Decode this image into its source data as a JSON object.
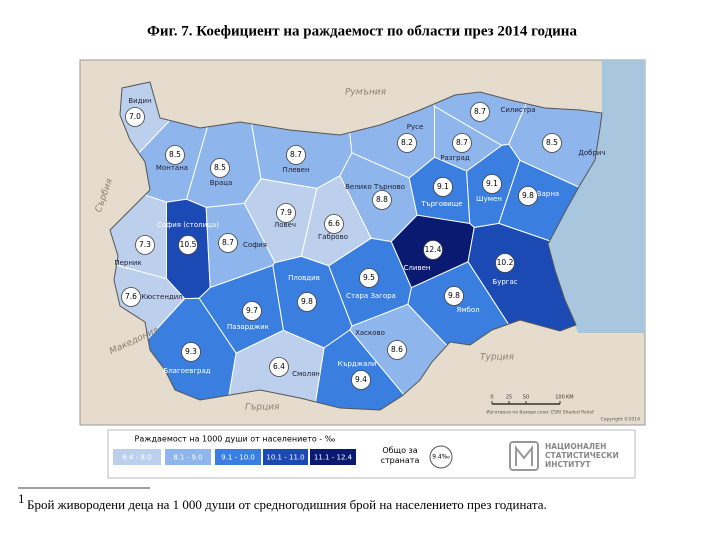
{
  "title": "Фиг. 7. Коефициент на раждаемост по области през 2014 година",
  "map": {
    "regions": [
      {
        "name": "Видин",
        "value": 7.0,
        "value_label": "7.0"
      },
      {
        "name": "Монтана",
        "value": 8.5,
        "value_label": "8.5"
      },
      {
        "name": "Враца",
        "value": 8.5,
        "value_label": "8.5"
      },
      {
        "name": "Плевен",
        "value": 8.7,
        "value_label": "8.7"
      },
      {
        "name": "Ловеч",
        "value": 7.9,
        "value_label": "7.9"
      },
      {
        "name": "Велико Търново",
        "value": 8.8,
        "value_label": "8.8"
      },
      {
        "name": "Русе",
        "value": 8.2,
        "value_label": "8.2"
      },
      {
        "name": "Разград",
        "value": 8.7,
        "value_label": "8.7"
      },
      {
        "name": "Силистра",
        "value": 8.7,
        "value_label": "8.7"
      },
      {
        "name": "Добрич",
        "value": 8.5,
        "value_label": "8.5"
      },
      {
        "name": "Търговище",
        "value": 9.1,
        "value_label": "9.1"
      },
      {
        "name": "Шумен",
        "value": 9.1,
        "value_label": "9.1"
      },
      {
        "name": "Варна",
        "value": 9.8,
        "value_label": "9.8"
      },
      {
        "name": "София (столица)",
        "value": 10.5,
        "value_label": "10.5"
      },
      {
        "name": "София",
        "value": 8.7,
        "value_label": "8.7"
      },
      {
        "name": "Перник",
        "value": 7.3,
        "value_label": "7.3"
      },
      {
        "name": "Кюстендил",
        "value": 7.6,
        "value_label": "7.6"
      },
      {
        "name": "Габрово",
        "value": 6.6,
        "value_label": "6.6"
      },
      {
        "name": "Сливен",
        "value": 12.4,
        "value_label": "12.4"
      },
      {
        "name": "Бургас",
        "value": 10.2,
        "value_label": "10.2"
      },
      {
        "name": "Ямбол",
        "value": 9.8,
        "value_label": "9.8"
      },
      {
        "name": "Стара Загора",
        "value": 9.5,
        "value_label": "9.5"
      },
      {
        "name": "Пловдив",
        "value": 9.8,
        "value_label": "9.8"
      },
      {
        "name": "Пазарджик",
        "value": 9.7,
        "value_label": "9.7"
      },
      {
        "name": "Хасково",
        "value": 8.6,
        "value_label": "8.6"
      },
      {
        "name": "Кърджали",
        "value": 9.4,
        "value_label": "9.4"
      },
      {
        "name": "Смолян",
        "value": 6.4,
        "value_label": "6.4"
      },
      {
        "name": "Благоевград",
        "value": 9.3,
        "value_label": "9.3"
      }
    ],
    "countries": [
      "Румъния",
      "Сърбия",
      "Македония",
      "Гърция",
      "Турция"
    ],
    "scale": {
      "ticks": [
        0,
        25,
        50,
        100
      ],
      "unit": "KM"
    },
    "credit": "Изготвено по базови слои: ESRI Shaded Relief",
    "copyright": "Copyright ©2014"
  },
  "legend": {
    "title": "Раждаемост на 1000 души от населението - ‰",
    "bins": [
      {
        "label": "6.4 - 8.0",
        "min": 6.4,
        "max": 8.0,
        "color": "#bcd0ee"
      },
      {
        "label": "8.1 - 9.0",
        "min": 8.1,
        "max": 9.0,
        "color": "#8eb5ec"
      },
      {
        "label": "9.1 - 10.0",
        "min": 9.1,
        "max": 10.0,
        "color": "#3a7fe0"
      },
      {
        "label": "10.1 - 11.0",
        "min": 10.1,
        "max": 11.0,
        "color": "#1c4ab5"
      },
      {
        "label": "11.1 - 12.4",
        "min": 11.1,
        "max": 12.4,
        "color": "#0a1a70"
      }
    ]
  },
  "total": {
    "label": "Общо за страната",
    "value": 9.4,
    "value_label": "9.4‰"
  },
  "logo": [
    "НАЦИОНАЛЕН",
    "СТАТИСТИЧЕСКИ",
    "ИНСТИТУТ"
  ],
  "footnote": {
    "mark": "1",
    "text": "Брой живородени деца на 1 000 души от средногодишния брой на населението през годината."
  }
}
